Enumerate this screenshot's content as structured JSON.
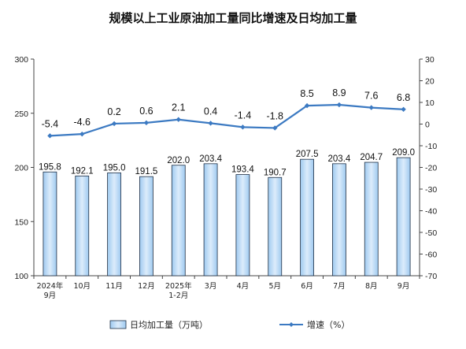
{
  "chart_data": {
    "type": "bar",
    "title": "规模以上工业原油加工量同比增速及日均加工量",
    "categories": [
      [
        "2024年",
        "9月"
      ],
      [
        "10月"
      ],
      [
        "11月"
      ],
      [
        "12月"
      ],
      [
        "2025年",
        "1-2月"
      ],
      [
        "3月"
      ],
      [
        "4月"
      ],
      [
        "5月"
      ],
      [
        "6月"
      ],
      [
        "7月"
      ],
      [
        "8月"
      ],
      [
        "9月"
      ]
    ],
    "series": [
      {
        "name": "日均加工量（万吨）",
        "type": "bar",
        "axis": "left",
        "values": [
          195.8,
          192.1,
          195.0,
          191.5,
          202.0,
          203.4,
          193.4,
          190.7,
          207.5,
          203.4,
          204.7,
          209.0
        ],
        "labels": [
          "195.8",
          "192.1",
          "195.0",
          "191.5",
          "202.0",
          "203.4",
          "193.4",
          "190.7",
          "207.5",
          "203.4",
          "204.7",
          "209.0"
        ]
      },
      {
        "name": "增速（%）",
        "type": "line",
        "axis": "right",
        "values": [
          -5.4,
          -4.6,
          0.2,
          0.6,
          2.1,
          0.4,
          -1.4,
          -1.8,
          8.5,
          8.9,
          7.6,
          6.8
        ],
        "labels": [
          "-5.4",
          "-4.6",
          "0.2",
          "0.6",
          "2.1",
          "0.4",
          "-1.4",
          "-1.8",
          "8.5",
          "8.9",
          "7.6",
          "6.8"
        ]
      }
    ],
    "y_left": {
      "min": 100,
      "max": 300,
      "ticks": [
        "100",
        "150",
        "200",
        "250",
        "300"
      ]
    },
    "y_right": {
      "min": -70,
      "max": 30,
      "ticks": [
        "-70",
        "-60",
        "-50",
        "-40",
        "-30",
        "-20",
        "-10",
        "0",
        "10",
        "20",
        "30"
      ]
    },
    "grid": false,
    "legend": "bottom",
    "colors": {
      "bar_fill": "#9fcaf0",
      "bar_fill_light": "#dcecfb",
      "bar_stroke": "#1f2f44",
      "line": "#3c7ac2",
      "axis": "#444444"
    }
  }
}
